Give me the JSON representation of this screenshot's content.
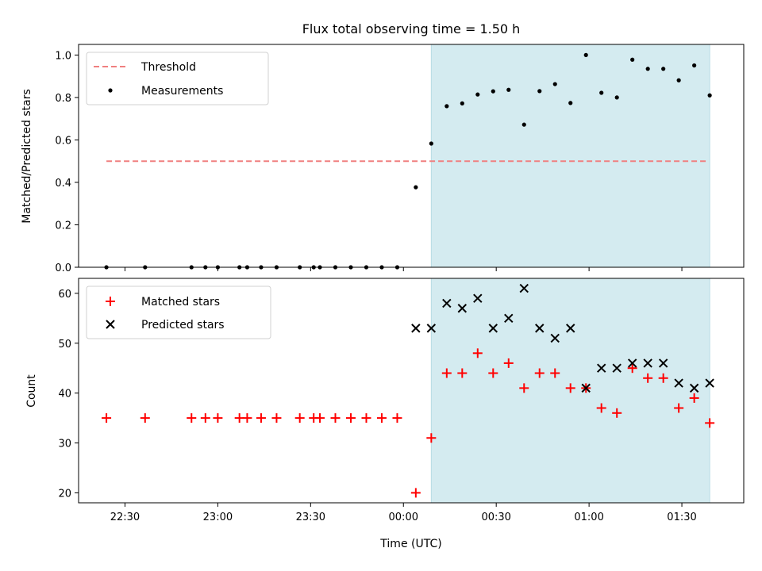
{
  "chart_data": {
    "title": "Flux total observing time = 1.50 h",
    "xlabel": "Time (UTC)",
    "x_unit": "minutes after 00:00 UTC",
    "xlim": [
      -105,
      110
    ],
    "xticks": [
      {
        "value": -90,
        "label": "22:30"
      },
      {
        "value": -60,
        "label": "23:00"
      },
      {
        "value": -30,
        "label": "23:30"
      },
      {
        "value": 0,
        "label": "00:00"
      },
      {
        "value": 30,
        "label": "00:30"
      },
      {
        "value": 60,
        "label": "01:00"
      },
      {
        "value": 90,
        "label": "01:30"
      }
    ],
    "shaded_interval": [
      9,
      99
    ],
    "shade_color": "#d4ebf0",
    "panels": [
      {
        "type": "scatter",
        "ylabel": "Matched/Predicted stars",
        "ylim": [
          0,
          1.05
        ],
        "yticks": [
          {
            "value": 0.0,
            "label": "0.0"
          },
          {
            "value": 0.2,
            "label": "0.2"
          },
          {
            "value": 0.4,
            "label": "0.4"
          },
          {
            "value": 0.6,
            "label": "0.6"
          },
          {
            "value": 0.8,
            "label": "0.8"
          },
          {
            "value": 1.0,
            "label": "1.0"
          }
        ],
        "legend_position": "top-left",
        "threshold": {
          "name": "Threshold",
          "value": 0.5,
          "x_range": [
            -96,
            98
          ],
          "color": "#f08080"
        },
        "series": [
          {
            "name": "Measurements",
            "marker": "dot",
            "color": "#000000",
            "x": [
              -96,
              -83.5,
              -68.5,
              -64,
              -60,
              -53,
              -50.5,
              -46,
              -41,
              -33.5,
              -29,
              -27,
              -22,
              -17,
              -12,
              -7,
              -2,
              4,
              9,
              14,
              19,
              24,
              29,
              34,
              39,
              44,
              49,
              54,
              59,
              64,
              69,
              74,
              79,
              84,
              89,
              94,
              99
            ],
            "y": [
              0,
              0,
              0,
              0,
              0,
              0,
              0,
              0,
              0,
              0,
              0,
              0,
              0,
              0,
              0,
              0,
              0,
              0.377,
              0.583,
              0.759,
              0.772,
              0.814,
              0.829,
              0.836,
              0.672,
              0.83,
              0.863,
              0.774,
              1.0,
              0.822,
              0.8,
              0.978,
              0.935,
              0.935,
              0.881,
              0.951,
              0.81
            ]
          }
        ]
      },
      {
        "type": "scatter",
        "ylabel": "Count",
        "ylim": [
          18,
          63
        ],
        "yticks": [
          {
            "value": 20,
            "label": "20"
          },
          {
            "value": 30,
            "label": "30"
          },
          {
            "value": 40,
            "label": "40"
          },
          {
            "value": 50,
            "label": "50"
          },
          {
            "value": 60,
            "label": "60"
          }
        ],
        "legend_position": "top-left",
        "series": [
          {
            "name": "Matched stars",
            "marker": "plus",
            "color": "#ff0000",
            "x": [
              -96,
              -83.5,
              -68.5,
              -64,
              -60,
              -53,
              -50.5,
              -46,
              -41,
              -33.5,
              -29,
              -27,
              -22,
              -17,
              -12,
              -7,
              -2,
              4,
              9,
              14,
              19,
              24,
              29,
              34,
              39,
              44,
              49,
              54,
              59,
              64,
              69,
              74,
              79,
              84,
              89,
              94,
              99
            ],
            "y": [
              35,
              35,
              35,
              35,
              35,
              35,
              35,
              35,
              35,
              35,
              35,
              35,
              35,
              35,
              35,
              35,
              35,
              20,
              31,
              44,
              44,
              48,
              44,
              46,
              41,
              44,
              44,
              41,
              41,
              37,
              36,
              45,
              43,
              43,
              37,
              39,
              34
            ]
          },
          {
            "name": "Predicted stars",
            "marker": "x",
            "color": "#000000",
            "x": [
              4,
              9,
              14,
              19,
              24,
              29,
              34,
              39,
              44,
              49,
              54,
              59,
              64,
              69,
              74,
              79,
              84,
              89,
              94,
              99
            ],
            "y": [
              53,
              53,
              58,
              57,
              59,
              53,
              55,
              61,
              53,
              51,
              53,
              41,
              45,
              45,
              46,
              46,
              46,
              42,
              41,
              42
            ]
          }
        ]
      }
    ]
  }
}
